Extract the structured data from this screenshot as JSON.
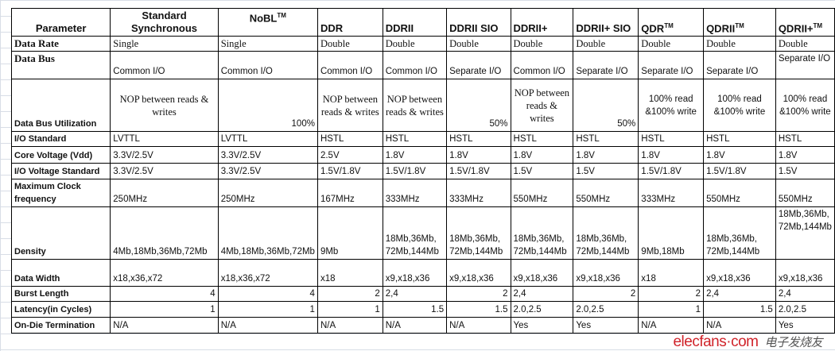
{
  "header": {
    "parameter": "Parameter",
    "columns": [
      {
        "name": "Standard Synchronous",
        "tm": ""
      },
      {
        "name": "NoBL",
        "tm": "TM"
      },
      {
        "name": "DDR",
        "tm": ""
      },
      {
        "name": "DDRII",
        "tm": ""
      },
      {
        "name": "DDRII SIO",
        "tm": ""
      },
      {
        "name": "DDRII+",
        "tm": ""
      },
      {
        "name": "DDRII+ SIO",
        "tm": ""
      },
      {
        "name": "QDR",
        "tm": "TM"
      },
      {
        "name": "QDRII",
        "tm": "TM"
      },
      {
        "name": "QDRII+",
        "tm": "TM"
      }
    ]
  },
  "rows": [
    {
      "label": "Data Rate",
      "cells": [
        "Single",
        "Single",
        "Double",
        "Double",
        "Double",
        "Double",
        "Double",
        "Double",
        "Double",
        "Double"
      ]
    },
    {
      "label": "Data Bus",
      "cells": [
        "Common I/O",
        "Common I/O",
        "Common I/O",
        "Common I/O",
        "Separate I/O",
        "Common I/O",
        "Separate I/O",
        "Separate I/O",
        "Separate I/O",
        "Separate I/O"
      ]
    },
    {
      "label": "Data Bus Utilization",
      "cells": [
        "NOP between reads & writes",
        "100%",
        "NOP between reads & writes",
        "NOP between reads & writes",
        "50%",
        "NOP between reads & writes",
        "50%",
        "100% read &100% write",
        "100% read &100% write",
        "100% read &100% write"
      ]
    },
    {
      "label": "I/O Standard",
      "cells": [
        "LVTTL",
        "LVTTL",
        "HSTL",
        "HSTL",
        "HSTL",
        "HSTL",
        "HSTL",
        "HSTL",
        "HSTL",
        "HSTL"
      ]
    },
    {
      "label": "Core Voltage (Vdd)",
      "cells": [
        "3.3V/2.5V",
        "3.3V/2.5V",
        "2.5V",
        "1.8V",
        "1.8V",
        "1.8V",
        "1.8V",
        "1.8V",
        "1.8V",
        "1.8V"
      ]
    },
    {
      "label": "I/O Voltage Standard",
      "cells": [
        "3.3V/2.5V",
        "3.3V/2.5V",
        "1.5V/1.8V",
        "1.5V/1.8V",
        "1.5V/1.8V",
        "1.5V",
        "1.5V",
        "1.5V/1.8V",
        "1.5V/1.8V",
        "1.5V"
      ]
    },
    {
      "label": "Maximum Clock frequency",
      "cells": [
        "250MHz",
        "250MHz",
        "167MHz",
        "333MHz",
        "333MHz",
        "550MHz",
        "550MHz",
        "333MHz",
        "550MHz",
        "550MHz"
      ]
    },
    {
      "label": "Density",
      "cells": [
        "4Mb,18Mb,36Mb,72Mb",
        "4Mb,18Mb,36Mb,72Mb",
        "9Mb",
        "18Mb,36Mb, 72Mb,144Mb",
        "18Mb,36Mb, 72Mb,144Mb",
        "18Mb,36Mb, 72Mb,144Mb",
        "18Mb,36Mb, 72Mb,144Mb",
        "9Mb,18Mb",
        "18Mb,36Mb, 72Mb,144Mb",
        "18Mb,36Mb, 72Mb,144Mb"
      ]
    },
    {
      "label": "Data Width",
      "cells": [
        "x18,x36,x72",
        "x18,x36,x72",
        "x18",
        "x9,x18,x36",
        "x9,x18,x36",
        "x9,x18,x36",
        "x9,x18,x36",
        "x18",
        "x9,x18,x36",
        "x9,x18,x36"
      ]
    },
    {
      "label": "Burst Length",
      "cells": [
        "4",
        "4",
        "2",
        "2,4",
        "2",
        "2,4",
        "2",
        "2",
        "2,4",
        "2,4"
      ]
    },
    {
      "label": "Latency(in Cycles)",
      "cells": [
        "1",
        "1",
        "1",
        "1.5",
        "1.5",
        "2.0,2.5",
        "2.0,2.5",
        "1",
        "1.5",
        "2.0,2.5"
      ]
    },
    {
      "label": "On-Die Termination",
      "cells": [
        "N/A",
        "N/A",
        "N/A",
        "N/A",
        "N/A",
        "Yes",
        "Yes",
        "N/A",
        "N/A",
        "Yes"
      ]
    }
  ],
  "watermark": {
    "text": "elecfans·com",
    "cn": "电子发烧友"
  }
}
